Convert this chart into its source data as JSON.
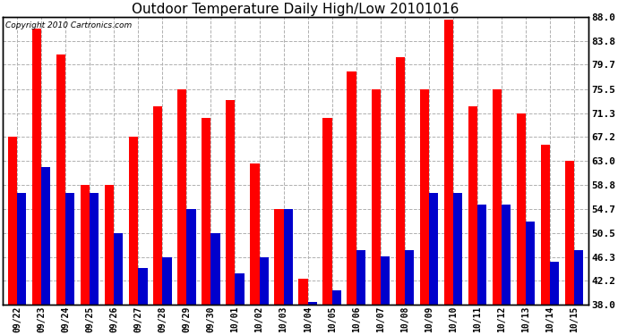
{
  "title": "Outdoor Temperature Daily High/Low 20101016",
  "copyright_text": "Copyright 2010 Cartronics.com",
  "dates": [
    "09/22",
    "09/23",
    "09/24",
    "09/25",
    "09/26",
    "09/27",
    "09/28",
    "09/29",
    "09/30",
    "10/01",
    "10/02",
    "10/03",
    "10/04",
    "10/05",
    "10/06",
    "10/07",
    "10/08",
    "10/09",
    "10/10",
    "10/11",
    "10/12",
    "10/13",
    "10/14",
    "10/15"
  ],
  "highs": [
    67.2,
    86.0,
    81.5,
    58.8,
    58.8,
    67.2,
    72.5,
    75.5,
    70.5,
    73.5,
    62.5,
    54.7,
    42.5,
    70.5,
    78.5,
    75.5,
    81.0,
    75.5,
    87.5,
    72.5,
    75.5,
    71.3,
    65.8,
    63.0
  ],
  "lows": [
    57.5,
    62.0,
    57.5,
    57.5,
    50.5,
    44.5,
    46.3,
    54.7,
    50.5,
    43.5,
    46.3,
    54.7,
    38.5,
    40.5,
    47.5,
    46.5,
    47.5,
    57.5,
    57.5,
    55.5,
    55.5,
    52.5,
    45.5,
    47.5
  ],
  "bar_color_high": "#ff0000",
  "bar_color_low": "#0000cc",
  "bg_color": "#ffffff",
  "grid_color": "#b0b0b0",
  "title_fontsize": 11,
  "copyright_fontsize": 6.5,
  "ytick_vals": [
    88.0,
    83.8,
    79.7,
    75.5,
    71.3,
    67.2,
    63.0,
    58.8,
    54.7,
    50.5,
    46.3,
    42.2,
    38.0
  ],
  "ylim": [
    38.0,
    88.0
  ],
  "ybase": 38.0,
  "bar_width": 0.38
}
